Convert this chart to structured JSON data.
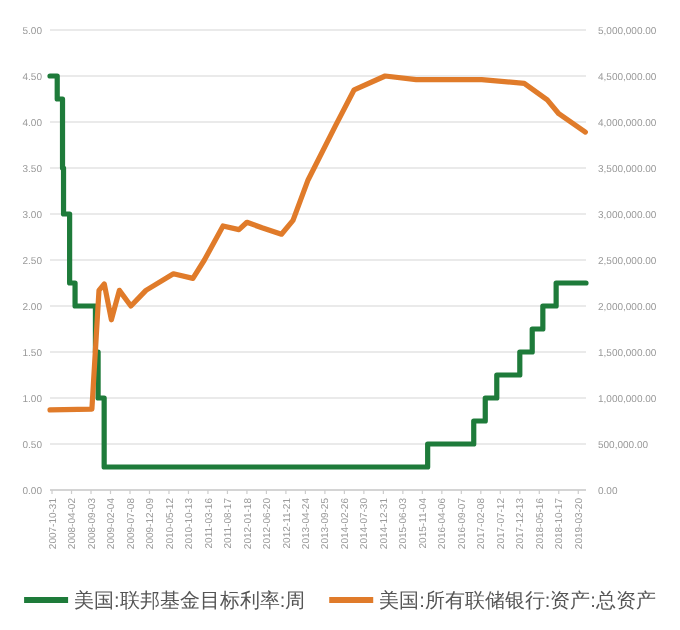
{
  "chart_data": {
    "type": "line",
    "xlim": [
      "2007-10-15",
      "2019-05-20"
    ],
    "xticks": [
      "2007-10-31",
      "2008-04-02",
      "2008-09-03",
      "2009-02-04",
      "2009-07-08",
      "2009-12-09",
      "2010-05-12",
      "2010-10-13",
      "2011-03-16",
      "2011-08-17",
      "2012-01-18",
      "2012-06-20",
      "2012-11-21",
      "2013-04-24",
      "2013-09-25",
      "2014-02-26",
      "2014-07-30",
      "2014-12-31",
      "2015-06-03",
      "2015-11-04",
      "2016-04-06",
      "2016-09-07",
      "2017-02-08",
      "2017-07-12",
      "2017-12-13",
      "2018-05-16",
      "2018-10-17",
      "2019-03-20"
    ],
    "ylim": [
      0,
      5
    ],
    "yticks": [
      {
        "value": 0,
        "label": "0.00"
      },
      {
        "value": 0.5,
        "label": "0.50"
      },
      {
        "value": 1,
        "label": "1.00"
      },
      {
        "value": 1.5,
        "label": "1.50"
      },
      {
        "value": 2,
        "label": "2.00"
      },
      {
        "value": 2.5,
        "label": "2.50"
      },
      {
        "value": 3,
        "label": "3.00"
      },
      {
        "value": 3.5,
        "label": "3.50"
      },
      {
        "value": 4,
        "label": "4.00"
      },
      {
        "value": 4.5,
        "label": "4.50"
      },
      {
        "value": 5,
        "label": "5.00"
      }
    ],
    "y2lim": [
      0,
      5000000
    ],
    "y2ticks": [
      {
        "value": 0,
        "label": "0.00"
      },
      {
        "value": 500000,
        "label": "500,000.00"
      },
      {
        "value": 1000000,
        "label": "1,000,000.00"
      },
      {
        "value": 1500000,
        "label": "1,500,000.00"
      },
      {
        "value": 2000000,
        "label": "2,000,000.00"
      },
      {
        "value": 2500000,
        "label": "2,500,000.00"
      },
      {
        "value": 3000000,
        "label": "3,000,000.00"
      },
      {
        "value": 3500000,
        "label": "3,500,000.00"
      },
      {
        "value": 4000000,
        "label": "4,000,000.00"
      },
      {
        "value": 4500000,
        "label": "4,500,000.00"
      },
      {
        "value": 5000000,
        "label": "5,000,000.00"
      }
    ],
    "grid": "y",
    "legend": "bottom",
    "series": [
      {
        "name": "美国:联邦基金目标利率:周",
        "type": "step",
        "color": "#1e7b3a",
        "x": [
          "2007-10-15",
          "2007-12-11",
          "2008-01-22",
          "2008-01-30",
          "2008-03-18",
          "2008-04-30",
          "2008-10-08",
          "2008-10-29",
          "2008-12-16",
          "2015-12-16",
          "2016-12-14",
          "2017-03-15",
          "2017-06-14",
          "2017-12-13",
          "2018-03-21",
          "2018-06-13",
          "2018-09-26",
          "2019-05-20"
        ],
        "values": [
          4.5,
          4.25,
          3.5,
          3.0,
          2.25,
          2.0,
          1.5,
          1.0,
          0.25,
          0.5,
          0.75,
          1.0,
          1.25,
          1.5,
          1.75,
          2.0,
          2.25,
          2.25
        ]
      },
      {
        "name": "美国:所有联储银行:资产:总资产",
        "axis": "y2",
        "color": "#e07b2a",
        "x": [
          "2007-10-15",
          "2008-09-10",
          "2008-11-05",
          "2008-12-17",
          "2009-02-11",
          "2009-04-15",
          "2009-07-15",
          "2009-11-11",
          "2010-06-16",
          "2010-11-17",
          "2011-02-16",
          "2011-07-13",
          "2011-11-16",
          "2012-01-18",
          "2012-05-16",
          "2012-10-17",
          "2013-01-16",
          "2013-05-15",
          "2013-12-18",
          "2014-05-14",
          "2015-01-14",
          "2015-09-16",
          "2017-02-15",
          "2018-01-17",
          "2018-07-18",
          "2018-10-17",
          "2019-05-15"
        ],
        "values": [
          870000,
          880000,
          2170000,
          2240000,
          1850000,
          2170000,
          2000000,
          2170000,
          2350000,
          2300000,
          2500000,
          2870000,
          2830000,
          2910000,
          2850000,
          2780000,
          2930000,
          3370000,
          3960000,
          4350000,
          4500000,
          4460000,
          4460000,
          4420000,
          4240000,
          4090000,
          3890000
        ]
      }
    ]
  }
}
